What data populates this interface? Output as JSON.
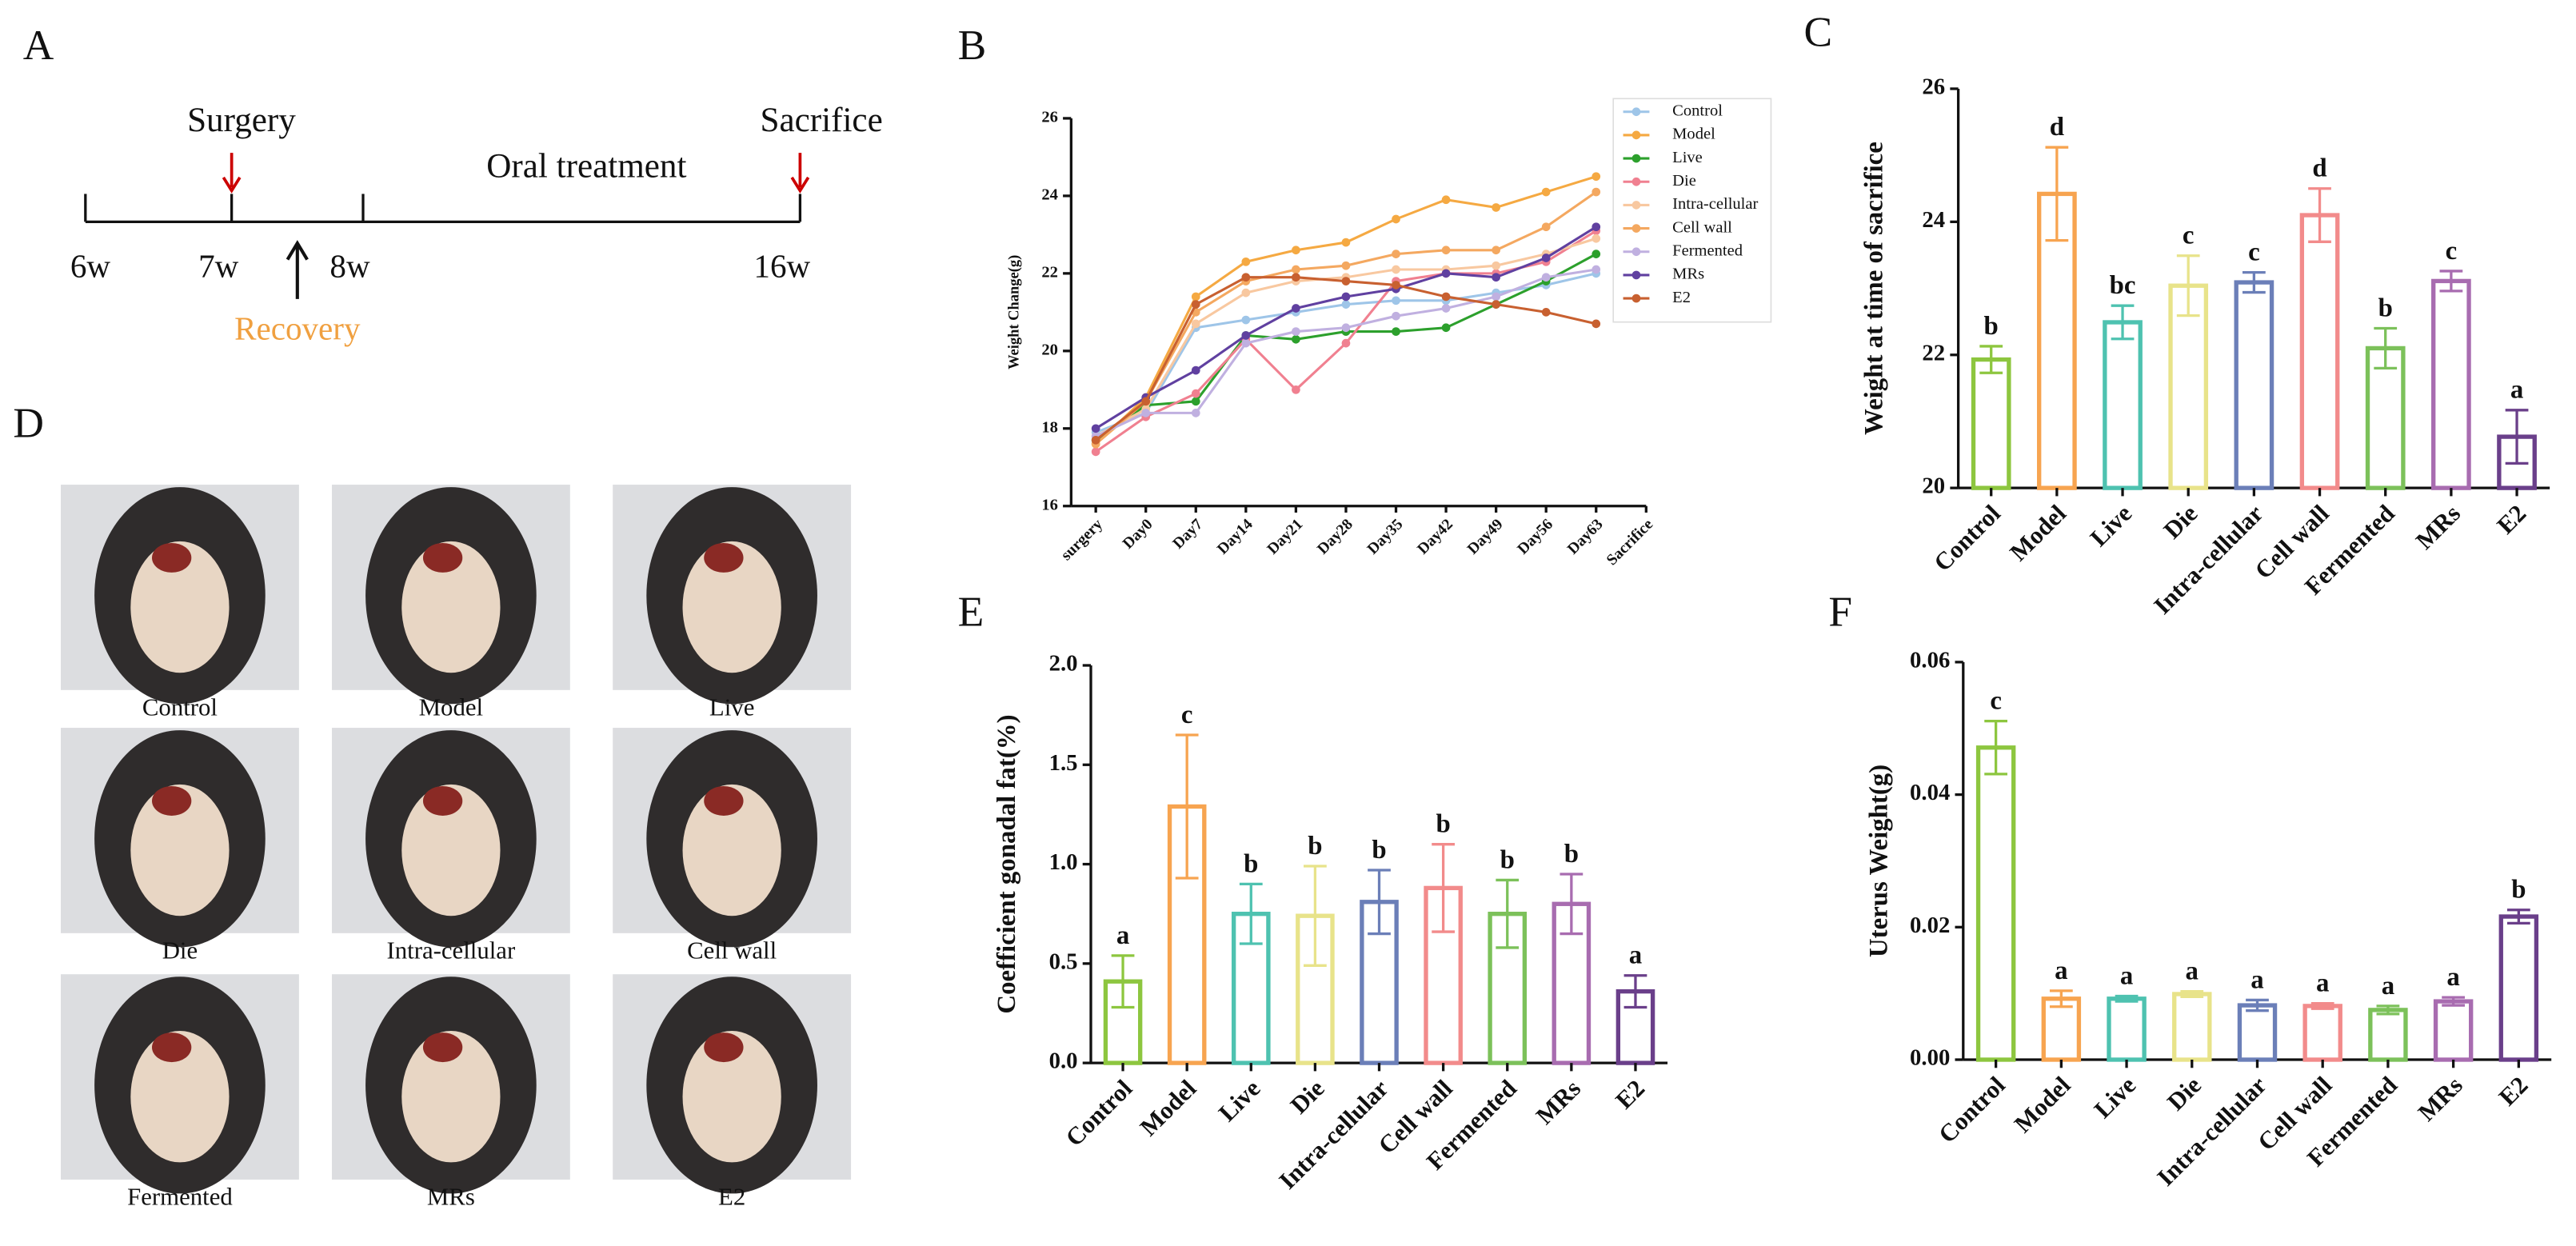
{
  "panel_a": {
    "letter": "A",
    "surgery": "Surgery",
    "treatment": "Oral treatment",
    "sacrifice": "Sacrifice",
    "recovery": "Recovery",
    "weeks": [
      "6w",
      "7w",
      "8w",
      "16w"
    ]
  },
  "panel_d": {
    "letter": "D",
    "photos": [
      "Control",
      "Model",
      "Live",
      "Die",
      "Intra-cellular",
      "Cell wall",
      "Fermented",
      "MRs",
      "E2"
    ]
  },
  "chart_data": [
    {
      "panel": "B",
      "type": "line",
      "y_label": "Weight Change(g)",
      "categories": [
        "surgery",
        "Day0",
        "Day7",
        "Day14",
        "Day21",
        "Day28",
        "Day35",
        "Day42",
        "Day49",
        "Day56",
        "Day63",
        "Sacrifice"
      ],
      "ylim": [
        16,
        26
      ],
      "yticks": [
        16,
        18,
        20,
        22,
        24,
        26
      ],
      "legend": "top-right",
      "series": [
        {
          "name": "Control",
          "color": "#9ec5e8",
          "values": [
            17.9,
            18.4,
            20.6,
            20.8,
            21.0,
            21.2,
            21.3,
            21.3,
            21.5,
            21.7,
            22.0,
            null
          ]
        },
        {
          "name": "Model",
          "color": "#f5a942",
          "values": [
            17.6,
            18.8,
            21.4,
            22.3,
            22.6,
            22.8,
            23.4,
            23.9,
            23.7,
            24.1,
            24.5,
            null
          ]
        },
        {
          "name": "Live",
          "color": "#2ca02c",
          "values": [
            17.7,
            18.6,
            18.7,
            20.4,
            20.3,
            20.5,
            20.5,
            20.6,
            21.2,
            21.8,
            22.5,
            null
          ]
        },
        {
          "name": "Die",
          "color": "#f08090",
          "values": [
            17.4,
            18.3,
            18.9,
            20.3,
            19.0,
            20.2,
            21.8,
            22.0,
            22.0,
            22.3,
            23.1,
            null
          ]
        },
        {
          "name": "Intra-cellular",
          "color": "#f8c8a0",
          "values": [
            17.8,
            18.5,
            20.7,
            21.5,
            21.8,
            21.9,
            22.1,
            22.1,
            22.2,
            22.5,
            22.9,
            null
          ]
        },
        {
          "name": "Cell wall",
          "color": "#f4a860",
          "values": [
            17.6,
            18.7,
            21.0,
            21.8,
            22.1,
            22.2,
            22.5,
            22.6,
            22.6,
            23.2,
            24.1,
            null
          ]
        },
        {
          "name": "Fermented",
          "color": "#c0b0e0",
          "values": [
            17.8,
            18.4,
            18.4,
            20.2,
            20.5,
            20.6,
            20.9,
            21.1,
            21.4,
            21.9,
            22.1,
            null
          ]
        },
        {
          "name": "MRs",
          "color": "#6040a0",
          "values": [
            18.0,
            18.8,
            19.5,
            20.4,
            21.1,
            21.4,
            21.6,
            22.0,
            21.9,
            22.4,
            23.2,
            null
          ]
        },
        {
          "name": "E2",
          "color": "#c86030",
          "values": [
            17.7,
            18.7,
            21.2,
            21.9,
            21.9,
            21.8,
            21.7,
            21.4,
            21.2,
            21.0,
            20.7,
            null
          ]
        }
      ]
    },
    {
      "panel": "C",
      "type": "bar",
      "y_label": "Weight at time of sacrifice",
      "categories": [
        "Control",
        "Model",
        "Live",
        "Die",
        "Intra-cellular",
        "Cell wall",
        "Fermented",
        "MRs",
        "E2"
      ],
      "values": [
        21.93,
        24.42,
        22.49,
        23.04,
        23.09,
        24.1,
        22.1,
        23.11,
        20.77
      ],
      "errors": [
        0.2,
        0.7,
        0.25,
        0.45,
        0.15,
        0.4,
        0.3,
        0.15,
        0.4
      ],
      "annotations": [
        "b",
        "d",
        "bc",
        "c",
        "c",
        "d",
        "b",
        "c",
        "a"
      ],
      "colors": [
        "#8dc63f",
        "#f7a450",
        "#4ec2b0",
        "#e8e38a",
        "#6b7fb8",
        "#f28b8b",
        "#7cc15a",
        "#a86cb0",
        "#6a3f8a"
      ],
      "ylim": [
        20,
        26
      ],
      "yticks": [
        20,
        22,
        24,
        26
      ]
    },
    {
      "panel": "E",
      "type": "bar",
      "y_label": "Coefficient gonadal fat(%)",
      "categories": [
        "Control",
        "Model",
        "Live",
        "Die",
        "Intra-cellular",
        "Cell wall",
        "Fermented",
        "MRs",
        "E2"
      ],
      "values": [
        0.41,
        1.29,
        0.75,
        0.74,
        0.81,
        0.88,
        0.75,
        0.8,
        0.36
      ],
      "errors": [
        0.13,
        0.36,
        0.15,
        0.25,
        0.16,
        0.22,
        0.17,
        0.15,
        0.08
      ],
      "annotations": [
        "a",
        "c",
        "b",
        "b",
        "b",
        "b",
        "b",
        "b",
        "a"
      ],
      "colors": [
        "#8dc63f",
        "#f7a450",
        "#4ec2b0",
        "#e8e38a",
        "#6b7fb8",
        "#f28b8b",
        "#7cc15a",
        "#a86cb0",
        "#6a3f8a"
      ],
      "ylim": [
        0,
        2
      ],
      "yticks": [
        {
          "value": 0,
          "label": "0.0"
        },
        0.5,
        {
          "value": 1,
          "label": "1.0"
        },
        1.5,
        {
          "value": 2,
          "label": "2.0"
        }
      ]
    },
    {
      "panel": "F",
      "type": "bar",
      "y_label": "Uterus Weight(g)",
      "categories": [
        "Control",
        "Model",
        "Live",
        "Die",
        "Intra-cellular",
        "Cell wall",
        "Fermented",
        "MRs",
        "E2"
      ],
      "values": [
        0.0471,
        0.0092,
        0.0092,
        0.0099,
        0.0082,
        0.0081,
        0.0075,
        0.0088,
        0.0216
      ],
      "errors": [
        0.004,
        0.0012,
        0.0004,
        0.0004,
        0.0008,
        0.0004,
        0.0006,
        0.0006,
        0.001
      ],
      "annotations": [
        "c",
        "a",
        "a",
        "a",
        "a",
        "a",
        "a",
        "a",
        "b"
      ],
      "colors": [
        "#8dc63f",
        "#f7a450",
        "#4ec2b0",
        "#e8e38a",
        "#6b7fb8",
        "#f28b8b",
        "#7cc15a",
        "#a86cb0",
        "#6a3f8a"
      ],
      "ylim": [
        0,
        0.06
      ],
      "yticks": [
        {
          "value": 0,
          "label": "0.00"
        },
        {
          "value": 0.02,
          "label": "0.02"
        },
        {
          "value": 0.04,
          "label": "0.04"
        },
        {
          "value": 0.06,
          "label": "0.06"
        }
      ]
    }
  ]
}
